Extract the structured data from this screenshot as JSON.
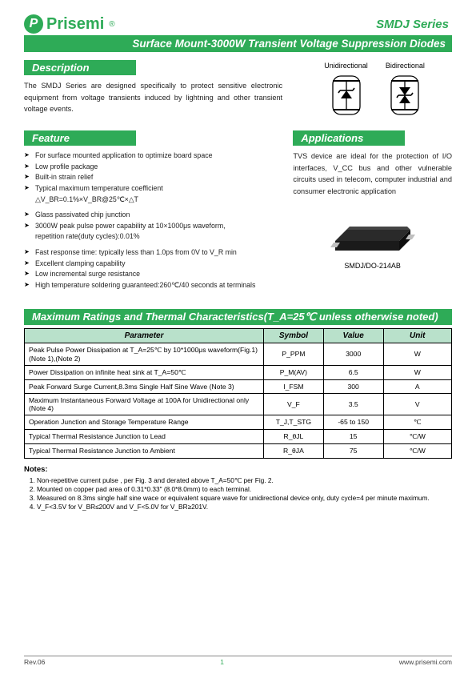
{
  "brand": {
    "name": "Prisemi",
    "mark": "P",
    "reg": "®"
  },
  "series_label": "SMDJ  Series",
  "banner": "Surface Mount-3000W  Transient Voltage Suppression Diodes",
  "description": {
    "title": "Description",
    "text": "The SMDJ Series are designed specifically to protect sensitive electronic equipment from voltage transients induced by lightning and other transient voltage events."
  },
  "symbols": {
    "uni": "Unidirectional",
    "bi": "Bidirectional"
  },
  "feature": {
    "title": "Feature",
    "items": [
      "For surface mounted application to optimize board space",
      "Low profile package",
      "Built-in strain relief",
      "Typical maximum temperature coefficient"
    ],
    "tc_formula": "△V_BR=0.1%×V_BR@25℃×△T",
    "items2": [
      "Glass passivated chip junction",
      "3000W peak pulse power capability at 10×1000μs waveform,"
    ],
    "rep_rate": "repetition rate(duty cycles):0.01%",
    "items3": [
      "Fast response time: typically less than 1.0ps from 0V to V_R min",
      "Excellent clamping capability",
      "Low incremental surge resistance",
      "High temperature soldering guaranteed:260℃/40 seconds at terminals"
    ]
  },
  "applications": {
    "title": "Applications",
    "text": "TVS device are ideal for the protection of I/O interfaces, V_CC bus and other vulnerable circuits used in telecom, computer industrial and consumer electronic application"
  },
  "package_caption": "SMDJ/DO-214AB",
  "ratings": {
    "title": "Maximum Ratings and Thermal Characteristics(T_A=25℃ unless otherwise noted)",
    "columns": [
      "Parameter",
      "Symbol",
      "Value",
      "Unit"
    ],
    "rows": [
      [
        "Peak Pulse Power Dissipation at T_A=25℃  by 10*1000μs waveform(Fig.1) (Note 1),(Note 2)",
        "P_PPM",
        "3000",
        "W"
      ],
      [
        "Power Dissipation on infinite heat sink at    T_A=50℃",
        "P_M(AV)",
        "6.5",
        "W"
      ],
      [
        "Peak Forward Surge Current,8.3ms Single Half Sine Wave (Note 3)",
        "I_FSM",
        "300",
        "A"
      ],
      [
        "Maximum Instantaneous Forward Voltage at 100A for Unidirectional only (Note 4)",
        "V_F",
        "3.5",
        "V"
      ],
      [
        "Operation Junction and Storage Temperature Range",
        "T_J,T_STG",
        "-65 to 150",
        "℃"
      ],
      [
        "Typical Thermal Resistance Junction to Lead",
        "R_θJL",
        "15",
        "℃/W"
      ],
      [
        "Typical Thermal Resistance Junction to Ambient",
        "R_θJA",
        "75",
        "℃/W"
      ]
    ]
  },
  "notes": {
    "title": "Notes:",
    "items": [
      "Non-repetitive current pulse , per Fig. 3 and derated above T_A=50℃  per Fig. 2.",
      "Mounted on copper pad area of 0.31*0.33\" (8.0*8.0mm) to each terminal.",
      "Measured on 8.3ms single half sine wace or equivalent square wave for unidirectional device only, duty cycle=4 per minute maximum.",
      "V_F<3.5V for V_BR≤200V and V_F<5.0V for V_BR≥201V."
    ]
  },
  "footer": {
    "rev": "Rev.06",
    "page": "1",
    "url": "www.prisemi.com"
  },
  "colors": {
    "brand": "#2eab57",
    "table_header_bg": "#b9e1cb"
  }
}
